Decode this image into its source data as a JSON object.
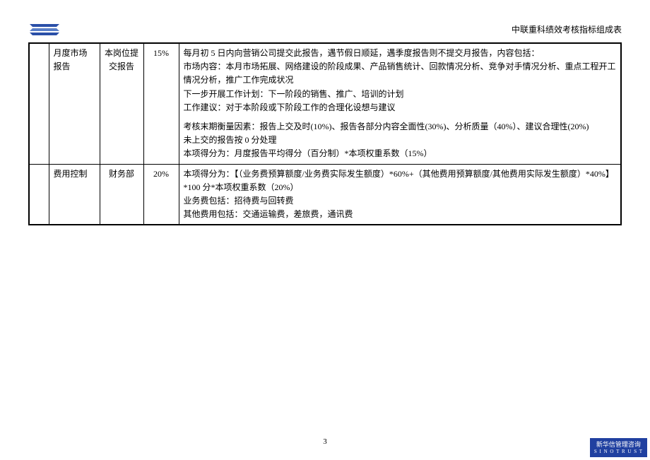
{
  "header": {
    "title": "中联重科绩效考核指标组成表"
  },
  "logo": {
    "fill1": "#2a4fa8",
    "fill2": "#5a7fc8"
  },
  "table": {
    "rows": [
      {
        "col1": "",
        "col2": "月度市场报告",
        "col3": "本岗位提交报告",
        "col4": "15%",
        "col5_lines": [
          "每月初 5 日内向营销公司提交此报告，遇节假日顺延，遇季度报告则不提交月报告，内容包括：",
          "市场内容：本月市场拓展、网络建设的阶段成果、产品销售统计、回款情况分析、竞争对手情况分析、重点工程开工情况分析，推广工作完成状况",
          "下一步开展工作计划：下一阶段的销售、推广、培训的计划",
          "工作建议：对于本阶段或下阶段工作的合理化设想与建议",
          "",
          "考核末期衡量因素：报告上交及时(10%)、报告各部分内容全面性(30%)、分析质量（40%）、建议合理性(20%)",
          "未上交的报告按 0 分处理",
          "本项得分为：月度报告平均得分（百分制）*本项权重系数（15%）"
        ]
      },
      {
        "col1": "",
        "col2": "费用控制",
        "col3": "财务部",
        "col4": "20%",
        "col5_lines": [
          "本项得分为：【（业务费预算额度/业务费实际发生额度）*60%+（其他费用预算额度/其他费用实际发生额度）*40%】*100 分*本项权重系数（20%）",
          "业务费包括：招待费与回转费",
          "其他费用包括：交通运输费，差旅费，通讯费"
        ]
      }
    ]
  },
  "pageNumber": "3",
  "footerLogo": {
    "cn": "新华信管理咨询",
    "en": "S I N O T R U S T",
    "bg": "#2040a0"
  }
}
